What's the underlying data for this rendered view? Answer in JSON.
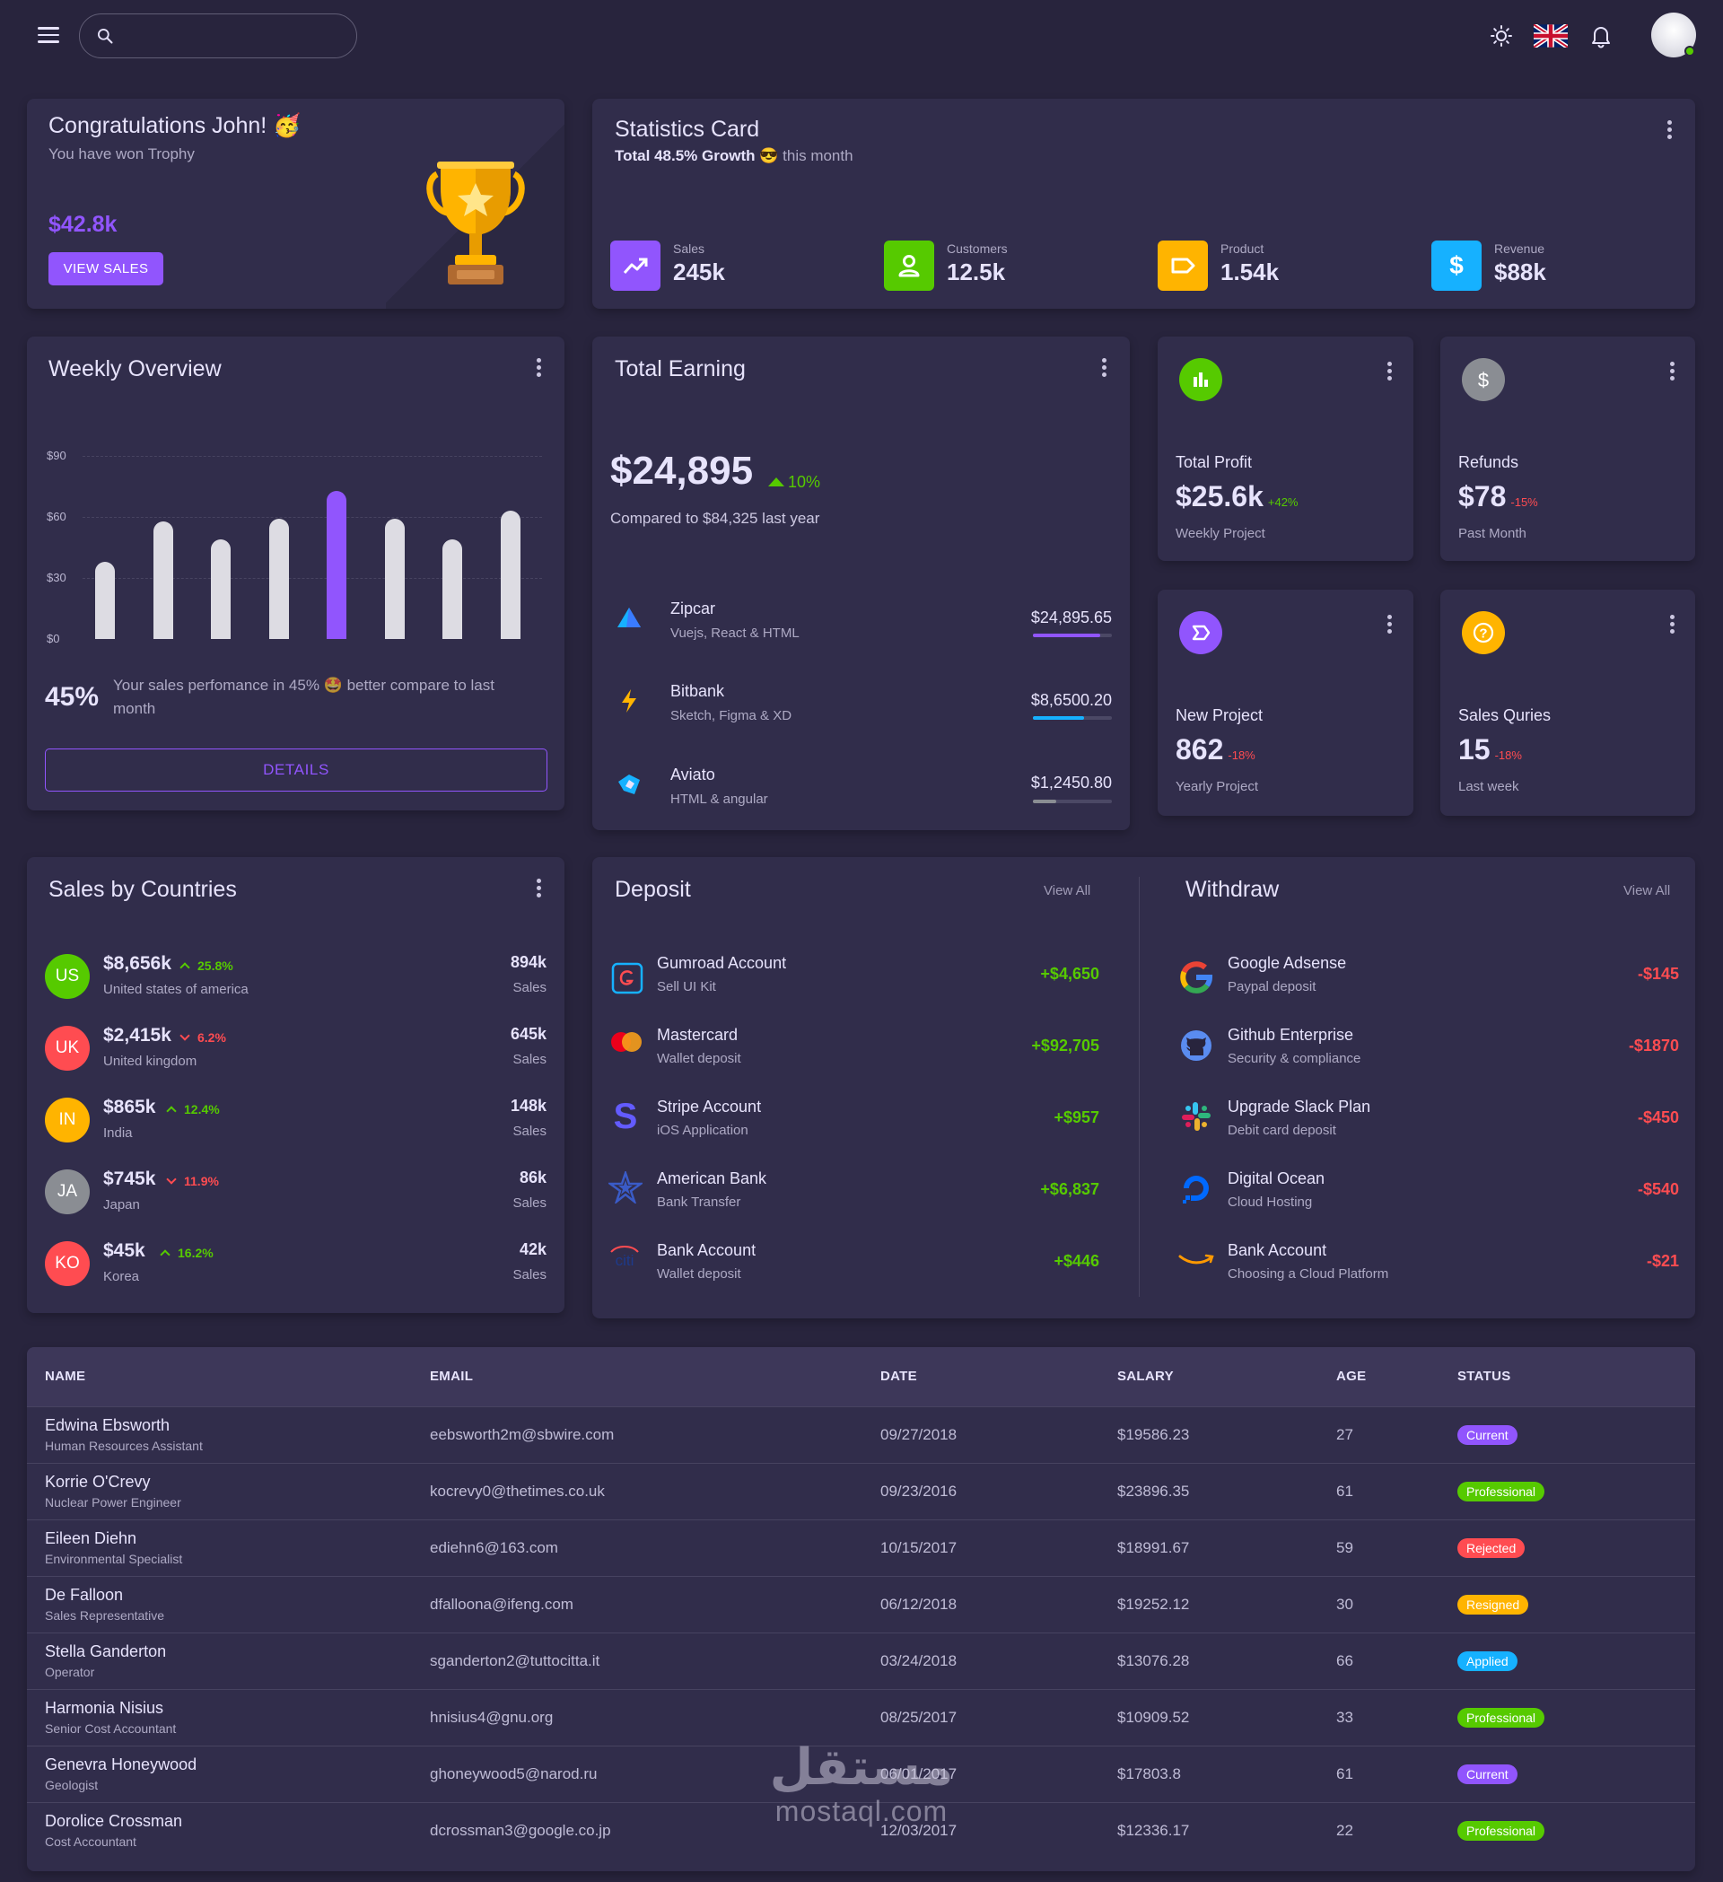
{
  "header": {
    "search_placeholder": "",
    "icons": [
      "menu-icon",
      "search-icon",
      "sun-icon",
      "uk-flag-icon",
      "bell-icon",
      "avatar"
    ]
  },
  "congrats": {
    "title": "Congratulations John! 🥳",
    "subtitle": "You have won Trophy",
    "amount": "$42.8k",
    "button": "VIEW SALES"
  },
  "statistics": {
    "title": "Statistics Card",
    "growth_bold": "Total 48.5% Growth",
    "growth_emoji": "😎",
    "growth_rest": "this month",
    "items": [
      {
        "label": "Sales",
        "value": "245k",
        "color": "#9155fd",
        "icon": "trending-up-icon"
      },
      {
        "label": "Customers",
        "value": "12.5k",
        "color": "#56ca00",
        "icon": "user-icon"
      },
      {
        "label": "Product",
        "value": "1.54k",
        "color": "#ffb400",
        "icon": "label-icon"
      },
      {
        "label": "Revenue",
        "value": "$88k",
        "color": "#16b1ff",
        "icon": "dollar-icon"
      }
    ]
  },
  "weekly": {
    "title": "Weekly Overview",
    "y_labels": [
      "$90",
      "$60",
      "$30",
      "$0"
    ],
    "percent": "45%",
    "text": "Your sales perfomance in 45% 🤩 better compare to last month",
    "button": "DETAILS"
  },
  "chart_data": {
    "type": "bar",
    "categories": [
      "1",
      "2",
      "3",
      "4",
      "5",
      "6",
      "7",
      "8"
    ],
    "values": [
      38,
      58,
      49,
      59,
      73,
      59,
      49,
      63
    ],
    "highlight_index": 4,
    "ylim": [
      0,
      90
    ],
    "y_ticks": [
      "$90",
      "$60",
      "$30",
      "$0"
    ],
    "colors": {
      "default": "#dddce3",
      "highlight": "#9155fd"
    }
  },
  "earning": {
    "title": "Total Earning",
    "amount": "$24,895",
    "delta": "10%",
    "compare": "Compared to $84,325 last year",
    "items": [
      {
        "name": "Zipcar",
        "sub": "Vuejs, React & HTML",
        "amount": "$24,895.65",
        "progress": 0.85,
        "color": "#9155fd",
        "icon": "zipcar-logo-icon"
      },
      {
        "name": "Bitbank",
        "sub": "Sketch, Figma & XD",
        "amount": "$8,6500.20",
        "progress": 0.65,
        "color": "#16b1ff",
        "icon": "bitbank-logo-icon"
      },
      {
        "name": "Aviato",
        "sub": "HTML & angular",
        "amount": "$1,2450.80",
        "progress": 0.3,
        "color": "#8a8d93",
        "icon": "aviato-logo-icon"
      }
    ]
  },
  "mini": [
    {
      "title": "Total Profit",
      "value": "$25.6k",
      "pct": "+42%",
      "pct_color": "#56ca00",
      "sub": "Weekly Project",
      "icon": "chart-icon",
      "color": "#56ca00"
    },
    {
      "title": "Refunds",
      "value": "$78",
      "pct": "-15%",
      "pct_color": "#ff4c51",
      "sub": "Past Month",
      "icon": "dollar-icon",
      "color": "#8a8d93"
    },
    {
      "title": "New Project",
      "value": "862",
      "pct": "-18%",
      "pct_color": "#ff4c51",
      "sub": "Yearly Project",
      "icon": "project-icon",
      "color": "#9155fd"
    },
    {
      "title": "Sales Quries",
      "value": "15",
      "pct": "-18%",
      "pct_color": "#ff4c51",
      "sub": "Last week",
      "icon": "help-icon",
      "color": "#ffb400"
    }
  ],
  "countries": {
    "title": "Sales by Countries",
    "items": [
      {
        "code": "US",
        "amount": "$8,656k",
        "trend": "up",
        "pct": "25.8%",
        "name": "United states of america",
        "sales": "894k",
        "sales_label": "Sales",
        "color": "#56ca00"
      },
      {
        "code": "UK",
        "amount": "$2,415k",
        "trend": "down",
        "pct": "6.2%",
        "name": "United kingdom",
        "sales": "645k",
        "sales_label": "Sales",
        "color": "#ff4c51"
      },
      {
        "code": "IN",
        "amount": "$865k",
        "trend": "up",
        "pct": "12.4%",
        "name": "India",
        "sales": "148k",
        "sales_label": "Sales",
        "color": "#ffb400"
      },
      {
        "code": "JA",
        "amount": "$745k",
        "trend": "down",
        "pct": "11.9%",
        "name": "Japan",
        "sales": "86k",
        "sales_label": "Sales",
        "color": "#8a8d93"
      },
      {
        "code": "KO",
        "amount": "$45k",
        "trend": "up",
        "pct": "16.2%",
        "name": "Korea",
        "sales": "42k",
        "sales_label": "Sales",
        "color": "#ff4c51"
      }
    ]
  },
  "deposit": {
    "title": "Deposit",
    "view_all": "View All",
    "items": [
      {
        "name": "Gumroad Account",
        "sub": "Sell UI Kit",
        "amount": "+$4,650",
        "icon": "gumroad-logo-icon"
      },
      {
        "name": "Mastercard",
        "sub": "Wallet deposit",
        "amount": "+$92,705",
        "icon": "mastercard-logo-icon"
      },
      {
        "name": "Stripe Account",
        "sub": "iOS Application",
        "amount": "+$957",
        "icon": "stripe-logo-icon"
      },
      {
        "name": "American Bank",
        "sub": "Bank Transfer",
        "amount": "+$6,837",
        "icon": "american-bank-logo-icon"
      },
      {
        "name": "Bank Account",
        "sub": "Wallet deposit",
        "amount": "+$446",
        "icon": "citi-logo-icon"
      }
    ]
  },
  "withdraw": {
    "title": "Withdraw",
    "view_all": "View All",
    "items": [
      {
        "name": "Google Adsense",
        "sub": "Paypal deposit",
        "amount": "-$145",
        "icon": "google-logo-icon"
      },
      {
        "name": "Github Enterprise",
        "sub": "Security & compliance",
        "amount": "-$1870",
        "icon": "github-logo-icon"
      },
      {
        "name": "Upgrade Slack Plan",
        "sub": "Debit card deposit",
        "amount": "-$450",
        "icon": "slack-logo-icon"
      },
      {
        "name": "Digital Ocean",
        "sub": "Cloud Hosting",
        "amount": "-$540",
        "icon": "digital-ocean-logo-icon"
      },
      {
        "name": "Bank Account",
        "sub": "Choosing a Cloud Platform",
        "amount": "-$21",
        "icon": "amazon-logo-icon"
      }
    ]
  },
  "table": {
    "headers": [
      "NAME",
      "EMAIL",
      "DATE",
      "SALARY",
      "AGE",
      "STATUS"
    ],
    "rows": [
      {
        "name": "Edwina Ebsworth",
        "job": "Human Resources Assistant",
        "email": "eebsworth2m@sbwire.com",
        "date": "09/27/2018",
        "salary": "$19586.23",
        "age": "27",
        "status": "Current",
        "status_color": "#9155fd"
      },
      {
        "name": "Korrie O'Crevy",
        "job": "Nuclear Power Engineer",
        "email": "kocrevy0@thetimes.co.uk",
        "date": "09/23/2016",
        "salary": "$23896.35",
        "age": "61",
        "status": "Professional",
        "status_color": "#56ca00"
      },
      {
        "name": "Eileen Diehn",
        "job": "Environmental Specialist",
        "email": "ediehn6@163.com",
        "date": "10/15/2017",
        "salary": "$18991.67",
        "age": "59",
        "status": "Rejected",
        "status_color": "#ff4c51"
      },
      {
        "name": "De Falloon",
        "job": "Sales Representative",
        "email": "dfalloona@ifeng.com",
        "date": "06/12/2018",
        "salary": "$19252.12",
        "age": "30",
        "status": "Resigned",
        "status_color": "#ffb400"
      },
      {
        "name": "Stella Ganderton",
        "job": "Operator",
        "email": "sganderton2@tuttocitta.it",
        "date": "03/24/2018",
        "salary": "$13076.28",
        "age": "66",
        "status": "Applied",
        "status_color": "#16b1ff"
      },
      {
        "name": "Harmonia Nisius",
        "job": "Senior Cost Accountant",
        "email": "hnisius4@gnu.org",
        "date": "08/25/2017",
        "salary": "$10909.52",
        "age": "33",
        "status": "Professional",
        "status_color": "#56ca00"
      },
      {
        "name": "Genevra Honeywood",
        "job": "Geologist",
        "email": "ghoneywood5@narod.ru",
        "date": "06/01/2017",
        "salary": "$17803.8",
        "age": "61",
        "status": "Current",
        "status_color": "#9155fd"
      },
      {
        "name": "Dorolice Crossman",
        "job": "Cost Accountant",
        "email": "dcrossman3@google.co.jp",
        "date": "12/03/2017",
        "salary": "$12336.17",
        "age": "22",
        "status": "Professional",
        "status_color": "#56ca00"
      }
    ]
  },
  "watermark": {
    "arabic": "مستقل",
    "latin": "mostaql.com"
  }
}
